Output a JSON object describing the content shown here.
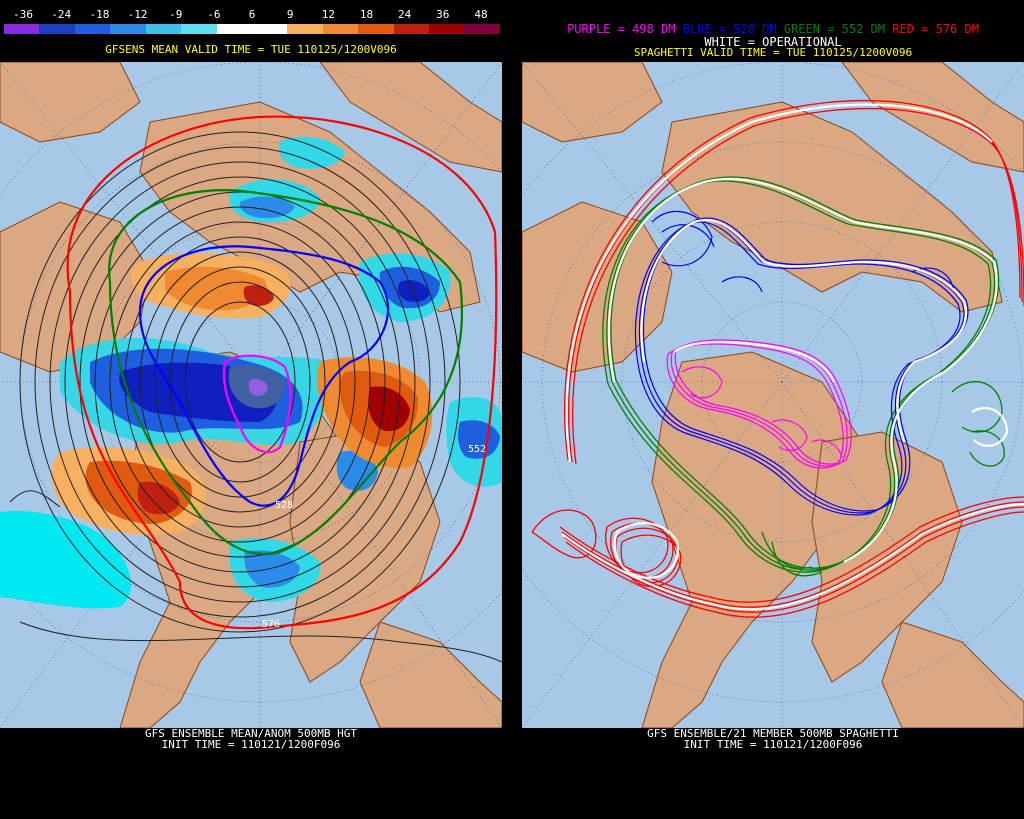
{
  "left": {
    "colorbar": {
      "ticks": [
        "-36",
        "-24",
        "-18",
        "-12",
        "-9",
        "-6",
        "6",
        "9",
        "12",
        "18",
        "24",
        "36",
        "48"
      ],
      "colors": [
        "#8a2be2",
        "#1a3fbf",
        "#1e5fe0",
        "#2b8be8",
        "#3fbfe8",
        "#5fe0f0",
        "#ffffff",
        "#ffffff",
        "#f7b060",
        "#f08a30",
        "#e05a10",
        "#c02010",
        "#a00000",
        "#800040"
      ]
    },
    "title": "GFSENS MEAN VALID TIME = TUE 110125/1200V096",
    "contour_labels": [
      "552",
      "528",
      "576"
    ],
    "footer": {
      "line1": "GFS ENSEMBLE MEAN/ANOM 500MB HGT",
      "line2": "INIT TIME = 110121/1200F096"
    }
  },
  "right": {
    "legend": {
      "purple": "PURPLE = 498 DM",
      "blue": "BLUE = 528 DM",
      "green": "GREEN = 552 DM",
      "red": "RED = 576 DM",
      "white": "WHITE = OPERATIONAL",
      "colors": {
        "purple": "#ff00ff",
        "blue": "#0000ff",
        "green": "#008000",
        "red": "#ff0000",
        "white": "#ffffff"
      }
    },
    "title": "SPAGHETTI VALID TIME = TUE 110125/1200V096",
    "footer": {
      "line1": "GFS ENSEMBLE/21 MEMBER 500MB SPAGHETTI",
      "line2": "INIT TIME = 110121/1200F096"
    }
  },
  "colors": {
    "ocean": "#a8c8e8",
    "land": "#dba884",
    "border": "#8b4513",
    "header_text": "#ffff00"
  }
}
